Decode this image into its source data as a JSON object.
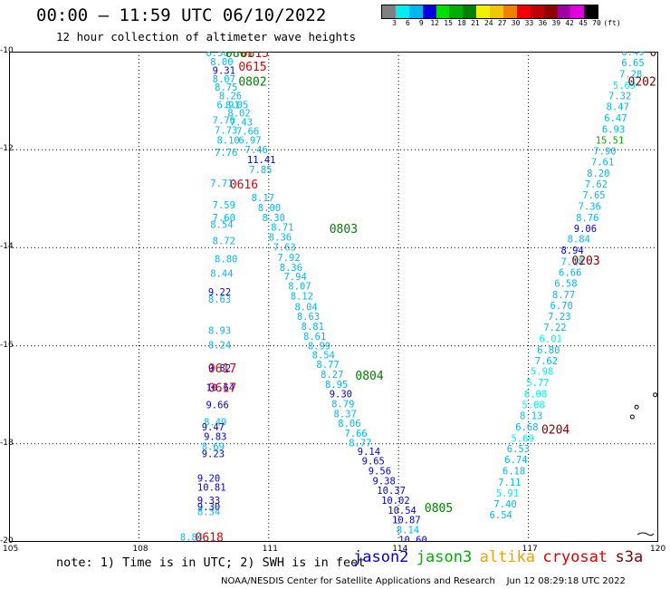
{
  "header": {
    "title": "00:00 – 11:59 UTC 06/10/2022",
    "subtitle": "12 hour collection of altimeter wave heights"
  },
  "colorbar": {
    "unit_label": "(ft)",
    "ticks": [
      "3",
      "6",
      "9",
      "12",
      "15",
      "18",
      "21",
      "24",
      "27",
      "30",
      "33",
      "36",
      "39",
      "42",
      "45",
      "70"
    ],
    "colors": [
      "#808080",
      "#00f0f0",
      "#00b8f0",
      "#0000e0",
      "#00e000",
      "#00b000",
      "#008000",
      "#f0f000",
      "#f0c800",
      "#f08000",
      "#f00000",
      "#c00000",
      "#900000",
      "#a000a0",
      "#e000e0",
      "#000000"
    ]
  },
  "axes": {
    "x_ticks": [
      105,
      108,
      111,
      114,
      117,
      120
    ],
    "y_ticks": [
      -10,
      -12,
      -14,
      -16,
      -18,
      -20
    ],
    "y_tick_labels": [
      "-10",
      "-12",
      "-14",
      "-16",
      "-18",
      "-20"
    ],
    "x_range": [
      105,
      120
    ],
    "y_range": [
      -20,
      -10
    ]
  },
  "tracks": [
    {
      "label": "0801",
      "label_pos": [
        110.0,
        -10.02
      ],
      "label_color": "#008000"
    },
    {
      "label": "0815",
      "label_pos": [
        110.35,
        -10.02
      ],
      "label_color": "#e00000"
    },
    {
      "label": "0615",
      "label_pos": [
        110.3,
        -10.3
      ],
      "label_color": "#e00000"
    },
    {
      "label": "0802",
      "label_pos": [
        110.3,
        -10.6
      ],
      "label_color": "#008000"
    },
    {
      "label": "0616",
      "label_pos": [
        110.1,
        -12.7
      ],
      "label_color": "#e00000"
    },
    {
      "label": "0803",
      "label_pos": [
        112.4,
        -13.6
      ],
      "label_color": "#008000"
    },
    {
      "label": "0804",
      "label_pos": [
        113.0,
        -16.6
      ],
      "label_color": "#008000"
    },
    {
      "label": "0617",
      "label_pos": [
        109.6,
        -16.45
      ],
      "label_color": "#e00000"
    },
    {
      "label": "0617",
      "label_pos": [
        109.6,
        -16.85
      ],
      "label_color": "#e00000"
    },
    {
      "label": "0805",
      "label_pos": [
        114.6,
        -19.3
      ],
      "label_color": "#008000"
    },
    {
      "label": "0618",
      "label_pos": [
        109.3,
        -19.9
      ],
      "label_color": "#e00000"
    },
    {
      "label": "0201",
      "label_pos": [
        119.8,
        -10.0
      ],
      "label_color": "#800000"
    },
    {
      "label": "0202",
      "label_pos": [
        119.3,
        -10.6
      ],
      "label_color": "#800000"
    },
    {
      "label": "0203",
      "label_pos": [
        118.0,
        -14.25
      ],
      "label_color": "#800000"
    },
    {
      "label": "0204",
      "label_pos": [
        117.3,
        -17.7
      ],
      "label_color": "#800000"
    }
  ],
  "observations": [
    {
      "v": "8.58",
      "lon": 109.55,
      "lat": -10.02,
      "c": "#00b8f0"
    },
    {
      "v": "8.00",
      "lon": 109.65,
      "lat": -10.2,
      "c": "#00b8f0"
    },
    {
      "v": "9.31",
      "lon": 109.7,
      "lat": -10.38,
      "c": "#0000e0"
    },
    {
      "v": "8.07",
      "lon": 109.7,
      "lat": -10.55,
      "c": "#00b8f0"
    },
    {
      "v": "8.75",
      "lon": 109.75,
      "lat": -10.72,
      "c": "#00b8f0"
    },
    {
      "v": "8.26",
      "lon": 109.85,
      "lat": -10.9,
      "c": "#00b8f0"
    },
    {
      "v": "6.91",
      "lon": 109.8,
      "lat": -11.08,
      "c": "#00b8f0"
    },
    {
      "v": "8.05",
      "lon": 110.0,
      "lat": -11.08,
      "c": "#00b8f0"
    },
    {
      "v": "8.02",
      "lon": 110.05,
      "lat": -11.25,
      "c": "#00b8f0"
    },
    {
      "v": "7.76",
      "lon": 109.7,
      "lat": -11.4,
      "c": "#00b8f0"
    },
    {
      "v": "7.43",
      "lon": 110.1,
      "lat": -11.43,
      "c": "#00b8f0"
    },
    {
      "v": "7.73",
      "lon": 109.75,
      "lat": -11.6,
      "c": "#00b8f0"
    },
    {
      "v": "7.66",
      "lon": 110.25,
      "lat": -11.62,
      "c": "#00b8f0"
    },
    {
      "v": "8.10",
      "lon": 109.8,
      "lat": -11.8,
      "c": "#00b8f0"
    },
    {
      "v": "6.97",
      "lon": 110.3,
      "lat": -11.8,
      "c": "#00b8f0"
    },
    {
      "v": "7.76",
      "lon": 109.75,
      "lat": -12.05,
      "c": "#00b8f0"
    },
    {
      "v": "7.46",
      "lon": 110.45,
      "lat": -12.0,
      "c": "#00b8f0"
    },
    {
      "v": "11.41",
      "lon": 110.5,
      "lat": -12.2,
      "c": "#0000e0"
    },
    {
      "v": "7.85",
      "lon": 110.55,
      "lat": -12.4,
      "c": "#00b8f0"
    },
    {
      "v": "7.71",
      "lon": 109.65,
      "lat": -12.68,
      "c": "#00b8f0"
    },
    {
      "v": "8.17",
      "lon": 110.6,
      "lat": -12.98,
      "c": "#00b8f0"
    },
    {
      "v": "7.59",
      "lon": 109.7,
      "lat": -13.12,
      "c": "#00b8f0"
    },
    {
      "v": "8.00",
      "lon": 110.75,
      "lat": -13.18,
      "c": "#00b8f0"
    },
    {
      "v": "7.60",
      "lon": 109.7,
      "lat": -13.38,
      "c": "#00b8f0"
    },
    {
      "v": "8.30",
      "lon": 110.85,
      "lat": -13.38,
      "c": "#00b8f0"
    },
    {
      "v": "8.54",
      "lon": 109.65,
      "lat": -13.52,
      "c": "#00b8f0"
    },
    {
      "v": "8.71",
      "lon": 111.05,
      "lat": -13.58,
      "c": "#00b8f0"
    },
    {
      "v": "8.36",
      "lon": 111.0,
      "lat": -13.78,
      "c": "#00b8f0"
    },
    {
      "v": "8.72",
      "lon": 109.7,
      "lat": -13.85,
      "c": "#00b8f0"
    },
    {
      "v": "7.63",
      "lon": 111.1,
      "lat": -13.98,
      "c": "#00b8f0"
    },
    {
      "v": "7.92",
      "lon": 111.2,
      "lat": -14.2,
      "c": "#00b8f0"
    },
    {
      "v": "8.80",
      "lon": 109.75,
      "lat": -14.22,
      "c": "#00b8f0"
    },
    {
      "v": "8.36",
      "lon": 111.25,
      "lat": -14.4,
      "c": "#00b8f0"
    },
    {
      "v": "8.44",
      "lon": 109.65,
      "lat": -14.52,
      "c": "#00b8f0"
    },
    {
      "v": "7.94",
      "lon": 111.35,
      "lat": -14.58,
      "c": "#00b8f0"
    },
    {
      "v": "8.07",
      "lon": 111.45,
      "lat": -14.78,
      "c": "#00b8f0"
    },
    {
      "v": "9.22",
      "lon": 109.6,
      "lat": -14.9,
      "c": "#0000e0"
    },
    {
      "v": "8.12",
      "lon": 111.5,
      "lat": -14.98,
      "c": "#00b8f0"
    },
    {
      "v": "8.63",
      "lon": 109.6,
      "lat": -15.05,
      "c": "#00b8f0"
    },
    {
      "v": "8.04",
      "lon": 111.6,
      "lat": -15.2,
      "c": "#00b8f0"
    },
    {
      "v": "8.63",
      "lon": 111.65,
      "lat": -15.4,
      "c": "#00b8f0"
    },
    {
      "v": "8.81",
      "lon": 111.75,
      "lat": -15.6,
      "c": "#00b8f0"
    },
    {
      "v": "8.93",
      "lon": 109.6,
      "lat": -15.68,
      "c": "#00b8f0"
    },
    {
      "v": "8.61",
      "lon": 111.8,
      "lat": -15.8,
      "c": "#00b8f0"
    },
    {
      "v": "8.24",
      "lon": 109.6,
      "lat": -15.98,
      "c": "#00b8f0"
    },
    {
      "v": "8.99",
      "lon": 111.9,
      "lat": -16.0,
      "c": "#00b8f0"
    },
    {
      "v": "8.54",
      "lon": 112.0,
      "lat": -16.18,
      "c": "#00b8f0"
    },
    {
      "v": "8.77",
      "lon": 112.1,
      "lat": -16.38,
      "c": "#00b8f0"
    },
    {
      "v": "9.82",
      "lon": 109.6,
      "lat": -16.45,
      "c": "#0000e0"
    },
    {
      "v": "8.27",
      "lon": 112.2,
      "lat": -16.58,
      "c": "#00b8f0"
    },
    {
      "v": "8.95",
      "lon": 112.3,
      "lat": -16.78,
      "c": "#00b8f0"
    },
    {
      "v": "10.64",
      "lon": 109.55,
      "lat": -16.85,
      "c": "#0000e0"
    },
    {
      "v": "9.30",
      "lon": 112.4,
      "lat": -16.98,
      "c": "#0000e0"
    },
    {
      "v": "9.66",
      "lon": 109.55,
      "lat": -17.2,
      "c": "#0000e0"
    },
    {
      "v": "8.79",
      "lon": 112.45,
      "lat": -17.18,
      "c": "#00b8f0"
    },
    {
      "v": "8.37",
      "lon": 112.5,
      "lat": -17.38,
      "c": "#00b8f0"
    },
    {
      "v": "8.49",
      "lon": 109.5,
      "lat": -17.55,
      "c": "#00b8f0"
    },
    {
      "v": "8.06",
      "lon": 112.6,
      "lat": -17.58,
      "c": "#00b8f0"
    },
    {
      "v": "9.47",
      "lon": 109.45,
      "lat": -17.65,
      "c": "#0000e0"
    },
    {
      "v": "7.66",
      "lon": 112.75,
      "lat": -17.78,
      "c": "#00b8f0"
    },
    {
      "v": "9.83",
      "lon": 109.5,
      "lat": -17.85,
      "c": "#0000e0"
    },
    {
      "v": "8.77",
      "lon": 112.85,
      "lat": -17.98,
      "c": "#00b8f0"
    },
    {
      "v": "8.69",
      "lon": 109.45,
      "lat": -18.05,
      "c": "#00b8f0"
    },
    {
      "v": "9.23",
      "lon": 109.45,
      "lat": -18.2,
      "c": "#0000e0"
    },
    {
      "v": "9.14",
      "lon": 113.05,
      "lat": -18.15,
      "c": "#0000e0"
    },
    {
      "v": "9.65",
      "lon": 113.15,
      "lat": -18.35,
      "c": "#0000e0"
    },
    {
      "v": "9.56",
      "lon": 113.3,
      "lat": -18.55,
      "c": "#0000e0"
    },
    {
      "v": "9.20",
      "lon": 109.35,
      "lat": -18.7,
      "c": "#0000e0"
    },
    {
      "v": "9.38",
      "lon": 113.4,
      "lat": -18.75,
      "c": "#0000e0"
    },
    {
      "v": "10.81",
      "lon": 109.35,
      "lat": -18.88,
      "c": "#0000e0"
    },
    {
      "v": "10.37",
      "lon": 113.5,
      "lat": -18.95,
      "c": "#0000e0"
    },
    {
      "v": "9.33",
      "lon": 109.35,
      "lat": -19.15,
      "c": "#0000e0"
    },
    {
      "v": "10.02",
      "lon": 113.6,
      "lat": -19.15,
      "c": "#0000e0"
    },
    {
      "v": "9.30",
      "lon": 109.35,
      "lat": -19.28,
      "c": "#0000e0"
    },
    {
      "v": "10.54",
      "lon": 113.75,
      "lat": -19.35,
      "c": "#0000e0"
    },
    {
      "v": "8.34",
      "lon": 109.35,
      "lat": -19.38,
      "c": "#00b8f0"
    },
    {
      "v": "10.87",
      "lon": 113.85,
      "lat": -19.55,
      "c": "#0000e0"
    },
    {
      "v": "8.14",
      "lon": 113.95,
      "lat": -19.75,
      "c": "#00b8f0"
    },
    {
      "v": "8.84",
      "lon": 108.95,
      "lat": -19.9,
      "c": "#00b8f0"
    },
    {
      "v": "10.60",
      "lon": 114.0,
      "lat": -19.95,
      "c": "#0000e0"
    },
    {
      "v": "8.49",
      "lon": 119.15,
      "lat": -10.0,
      "c": "#00b8f0"
    },
    {
      "v": "6.65",
      "lon": 119.15,
      "lat": -10.22,
      "c": "#00b8f0"
    },
    {
      "v": "7.28",
      "lon": 119.1,
      "lat": -10.45,
      "c": "#00b8f0"
    },
    {
      "v": "5.69",
      "lon": 118.95,
      "lat": -10.68,
      "c": "#00f0f0"
    },
    {
      "v": "7.32",
      "lon": 118.85,
      "lat": -10.9,
      "c": "#00b8f0"
    },
    {
      "v": "8.47",
      "lon": 118.8,
      "lat": -11.12,
      "c": "#00b8f0"
    },
    {
      "v": "6.47",
      "lon": 118.75,
      "lat": -11.35,
      "c": "#00b8f0"
    },
    {
      "v": "6.93",
      "lon": 118.7,
      "lat": -11.58,
      "c": "#00b8f0"
    },
    {
      "v": "15.51",
      "lon": 118.55,
      "lat": -11.8,
      "c": "#00b000"
    },
    {
      "v": "7.90",
      "lon": 118.5,
      "lat": -12.02,
      "c": "#00b8f0"
    },
    {
      "v": "7.61",
      "lon": 118.45,
      "lat": -12.25,
      "c": "#00b8f0"
    },
    {
      "v": "8.20",
      "lon": 118.35,
      "lat": -12.48,
      "c": "#00b8f0"
    },
    {
      "v": "7.62",
      "lon": 118.3,
      "lat": -12.7,
      "c": "#00b8f0"
    },
    {
      "v": "7.65",
      "lon": 118.25,
      "lat": -12.92,
      "c": "#00b8f0"
    },
    {
      "v": "7.36",
      "lon": 118.15,
      "lat": -13.15,
      "c": "#00b8f0"
    },
    {
      "v": "8.76",
      "lon": 118.1,
      "lat": -13.38,
      "c": "#00b8f0"
    },
    {
      "v": "9.06",
      "lon": 118.05,
      "lat": -13.6,
      "c": "#0000e0"
    },
    {
      "v": "8.84",
      "lon": 117.9,
      "lat": -13.82,
      "c": "#00b8f0"
    },
    {
      "v": "8.94",
      "lon": 117.75,
      "lat": -14.05,
      "c": "#0000e0"
    },
    {
      "v": "7.18",
      "lon": 117.75,
      "lat": -14.28,
      "c": "#00b8f0"
    },
    {
      "v": "6.66",
      "lon": 117.7,
      "lat": -14.5,
      "c": "#00b8f0"
    },
    {
      "v": "6.58",
      "lon": 117.6,
      "lat": -14.72,
      "c": "#00b8f0"
    },
    {
      "v": "8.77",
      "lon": 117.55,
      "lat": -14.95,
      "c": "#00b8f0"
    },
    {
      "v": "6.70",
      "lon": 117.5,
      "lat": -15.18,
      "c": "#00b8f0"
    },
    {
      "v": "7.23",
      "lon": 117.45,
      "lat": -15.4,
      "c": "#00b8f0"
    },
    {
      "v": "7.22",
      "lon": 117.35,
      "lat": -15.62,
      "c": "#00b8f0"
    },
    {
      "v": "6.01",
      "lon": 117.25,
      "lat": -15.85,
      "c": "#00f0f0"
    },
    {
      "v": "6.80",
      "lon": 117.2,
      "lat": -16.08,
      "c": "#00b8f0"
    },
    {
      "v": "7.62",
      "lon": 117.15,
      "lat": -16.3,
      "c": "#00b8f0"
    },
    {
      "v": "5.98",
      "lon": 117.05,
      "lat": -16.52,
      "c": "#00f0f0"
    },
    {
      "v": "5.77",
      "lon": 116.95,
      "lat": -16.75,
      "c": "#00f0f0"
    },
    {
      "v": "6.08",
      "lon": 116.9,
      "lat": -16.98,
      "c": "#00f0f0"
    },
    {
      "v": "5.08",
      "lon": 116.85,
      "lat": -17.2,
      "c": "#00f0f0"
    },
    {
      "v": "8.13",
      "lon": 116.8,
      "lat": -17.42,
      "c": "#00b8f0"
    },
    {
      "v": "6.68",
      "lon": 116.7,
      "lat": -17.65,
      "c": "#00b8f0"
    },
    {
      "v": "5.69",
      "lon": 116.6,
      "lat": -17.88,
      "c": "#00f0f0"
    },
    {
      "v": "6.53",
      "lon": 116.5,
      "lat": -18.1,
      "c": "#00b8f0"
    },
    {
      "v": "6.74",
      "lon": 116.45,
      "lat": -18.32,
      "c": "#00b8f0"
    },
    {
      "v": "6.18",
      "lon": 116.4,
      "lat": -18.55,
      "c": "#00b8f0"
    },
    {
      "v": "7.11",
      "lon": 116.3,
      "lat": -18.78,
      "c": "#00b8f0"
    },
    {
      "v": "5.91",
      "lon": 116.25,
      "lat": -19.0,
      "c": "#00f0f0"
    },
    {
      "v": "7.40",
      "lon": 116.2,
      "lat": -19.22,
      "c": "#00b8f0"
    },
    {
      "v": "6.54",
      "lon": 116.1,
      "lat": -19.45,
      "c": "#00b8f0"
    }
  ],
  "islands": [
    {
      "lon": 119.93,
      "lat": -17.0
    },
    {
      "lon": 119.5,
      "lat": -17.25
    },
    {
      "lon": 119.4,
      "lat": -17.45
    }
  ],
  "footer": {
    "note": "note: 1) Time is in UTC; 2) SWH is in feet",
    "legend": [
      {
        "name": "jason2",
        "color": "#0000e0"
      },
      {
        "name": "jason3",
        "color": "#00b000"
      },
      {
        "name": "altika",
        "color": "#f0a000"
      },
      {
        "name": "cryosat",
        "color": "#e00000"
      },
      {
        "name": "s3a",
        "color": "#800000"
      }
    ],
    "credit": "NOAA/NESDIS Center for Satellite Applications and Research    Jun 12 08:29:18 UTC 2022"
  }
}
